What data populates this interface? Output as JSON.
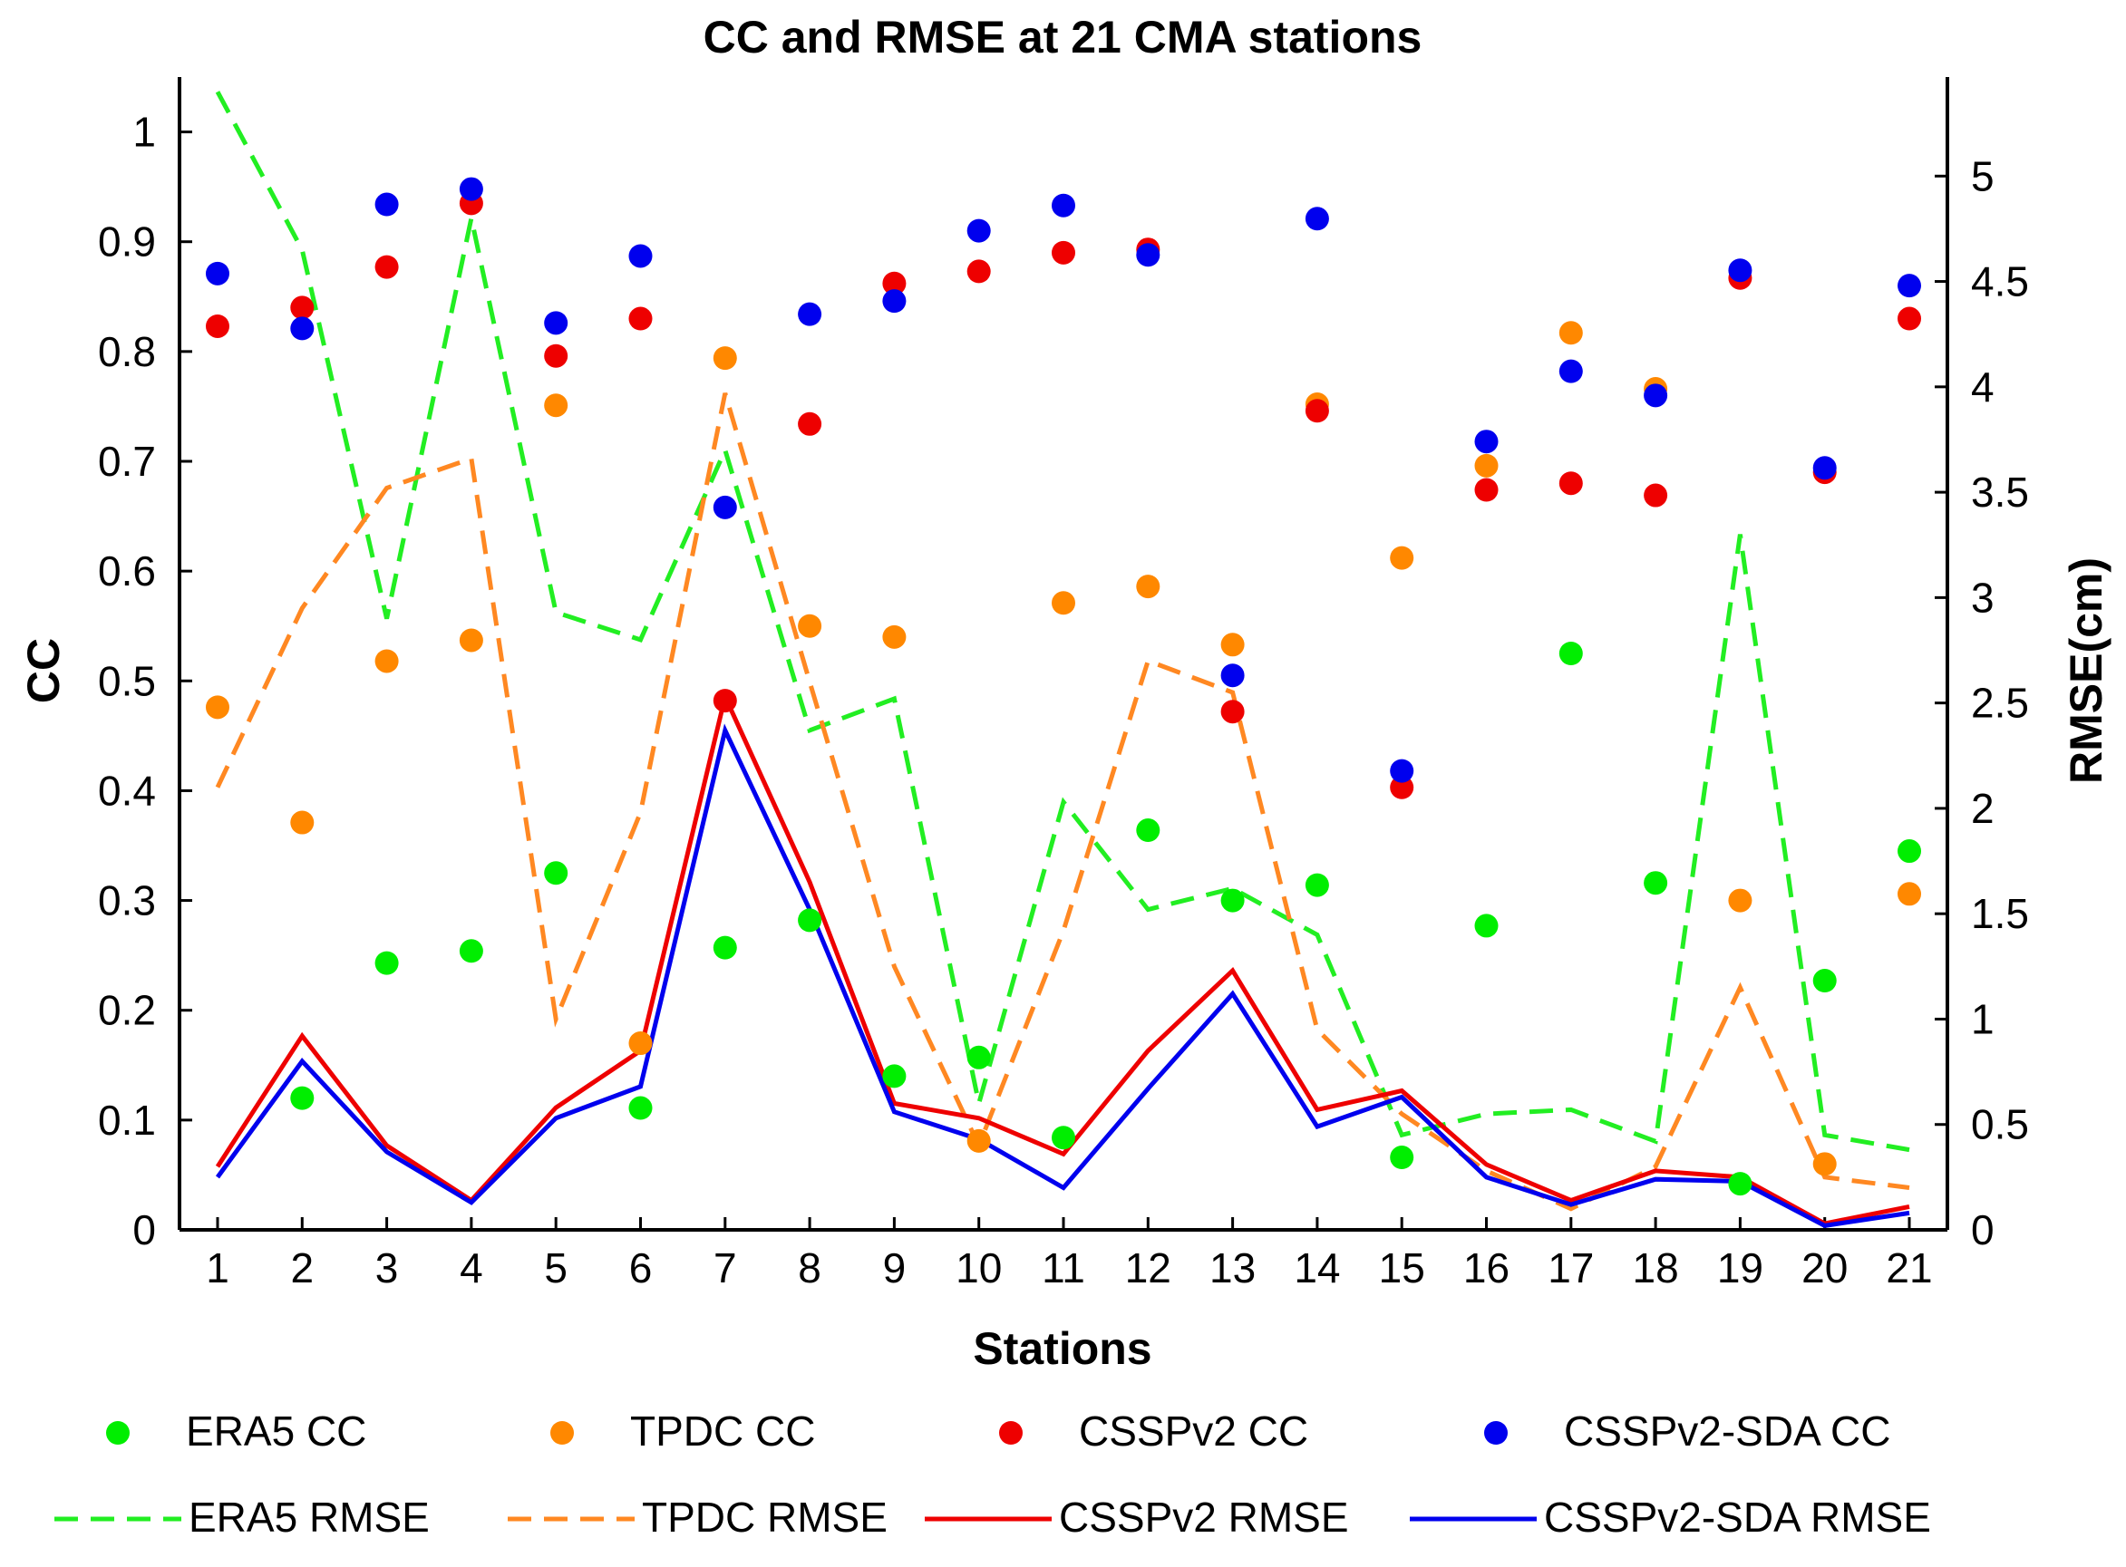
{
  "chart_data": {
    "type": "scatter+line",
    "title": "CC and RMSE at 21 CMA stations",
    "xlabel": "Stations",
    "ylabel_left": "CC",
    "ylabel_right": "RMSE(cm)",
    "x": [
      1,
      2,
      3,
      4,
      5,
      6,
      7,
      8,
      9,
      10,
      11,
      12,
      13,
      14,
      15,
      16,
      17,
      18,
      19,
      20,
      21
    ],
    "x_ticks": [
      "1",
      "2",
      "3",
      "4",
      "5",
      "6",
      "7",
      "8",
      "9",
      "10",
      "11",
      "12",
      "13",
      "14",
      "15",
      "16",
      "17",
      "18",
      "19",
      "20",
      "21"
    ],
    "ylim_left": [
      0,
      1.05
    ],
    "ylim_right": [
      0,
      5.47
    ],
    "yticks_left": [
      "0",
      "0.1",
      "0.2",
      "0.3",
      "0.4",
      "0.5",
      "0.6",
      "0.7",
      "0.8",
      "0.9",
      "1"
    ],
    "yticks_right": [
      "0",
      "0.5",
      "1",
      "1.5",
      "2",
      "2.5",
      "3",
      "3.5",
      "4",
      "4.5",
      "5"
    ],
    "scatter_series": [
      {
        "name": "ERA5 CC",
        "color": "#00ee00",
        "axis": "left",
        "values": [
          null,
          0.12,
          0.243,
          0.254,
          0.325,
          0.111,
          0.257,
          0.282,
          0.14,
          0.157,
          0.084,
          0.364,
          0.3,
          0.314,
          0.066,
          0.277,
          0.525,
          0.316,
          0.042,
          0.227,
          0.345
        ]
      },
      {
        "name": "TPDC CC",
        "color": "#ff8800",
        "axis": "left",
        "values": [
          0.476,
          0.371,
          0.518,
          0.537,
          0.751,
          0.17,
          0.794,
          0.55,
          0.54,
          0.081,
          0.571,
          0.586,
          0.533,
          0.752,
          0.612,
          0.696,
          0.817,
          0.766,
          0.3,
          0.06,
          0.306
        ]
      },
      {
        "name": "CSSPv2 CC",
        "color": "#ee0000",
        "axis": "left",
        "values": [
          0.823,
          0.84,
          0.877,
          0.935,
          0.796,
          0.83,
          0.482,
          0.734,
          0.862,
          0.873,
          0.89,
          0.893,
          0.472,
          0.746,
          0.403,
          0.674,
          0.68,
          0.669,
          0.867,
          0.69,
          0.83
        ]
      },
      {
        "name": "CSSPv2-SDA CC",
        "color": "#0000ee",
        "axis": "left",
        "values": [
          0.871,
          0.821,
          0.934,
          0.948,
          0.826,
          0.887,
          0.658,
          0.834,
          0.846,
          0.91,
          0.933,
          0.888,
          0.505,
          0.921,
          0.418,
          0.718,
          0.782,
          0.76,
          0.874,
          0.694,
          0.86
        ]
      }
    ],
    "line_series": [
      {
        "name": "ERA5 RMSE",
        "color": "#22ee22",
        "dash": "dashed",
        "axis": "right",
        "values": [
          5.4,
          4.65,
          2.9,
          4.8,
          2.93,
          2.8,
          3.7,
          2.37,
          2.52,
          0.6,
          2.03,
          1.52,
          1.62,
          1.4,
          0.45,
          0.55,
          0.57,
          0.42,
          3.3,
          0.45,
          0.38
        ]
      },
      {
        "name": "TPDC RMSE",
        "color": "#ff8822",
        "dash": "dashed",
        "axis": "right",
        "values": [
          2.1,
          2.95,
          3.52,
          3.66,
          1.0,
          1.98,
          3.97,
          2.6,
          1.25,
          0.4,
          1.42,
          2.7,
          2.55,
          0.95,
          0.55,
          0.28,
          0.1,
          0.3,
          1.15,
          0.25,
          0.2
        ]
      },
      {
        "name": "CSSPv2 RMSE",
        "color": "#ee0000",
        "dash": "solid",
        "axis": "right",
        "values": [
          0.3,
          0.92,
          0.4,
          0.14,
          0.58,
          0.85,
          2.53,
          1.65,
          0.6,
          0.53,
          0.36,
          0.85,
          1.23,
          0.57,
          0.66,
          0.31,
          0.14,
          0.28,
          0.25,
          0.03,
          0.11
        ]
      },
      {
        "name": "CSSPv2-SDA RMSE",
        "color": "#0000ee",
        "dash": "solid",
        "axis": "right",
        "values": [
          0.25,
          0.8,
          0.37,
          0.13,
          0.53,
          0.68,
          2.37,
          1.52,
          0.56,
          0.43,
          0.2,
          0.67,
          1.12,
          0.49,
          0.63,
          0.25,
          0.12,
          0.24,
          0.23,
          0.02,
          0.08
        ]
      }
    ],
    "legend_position": "bottom"
  }
}
